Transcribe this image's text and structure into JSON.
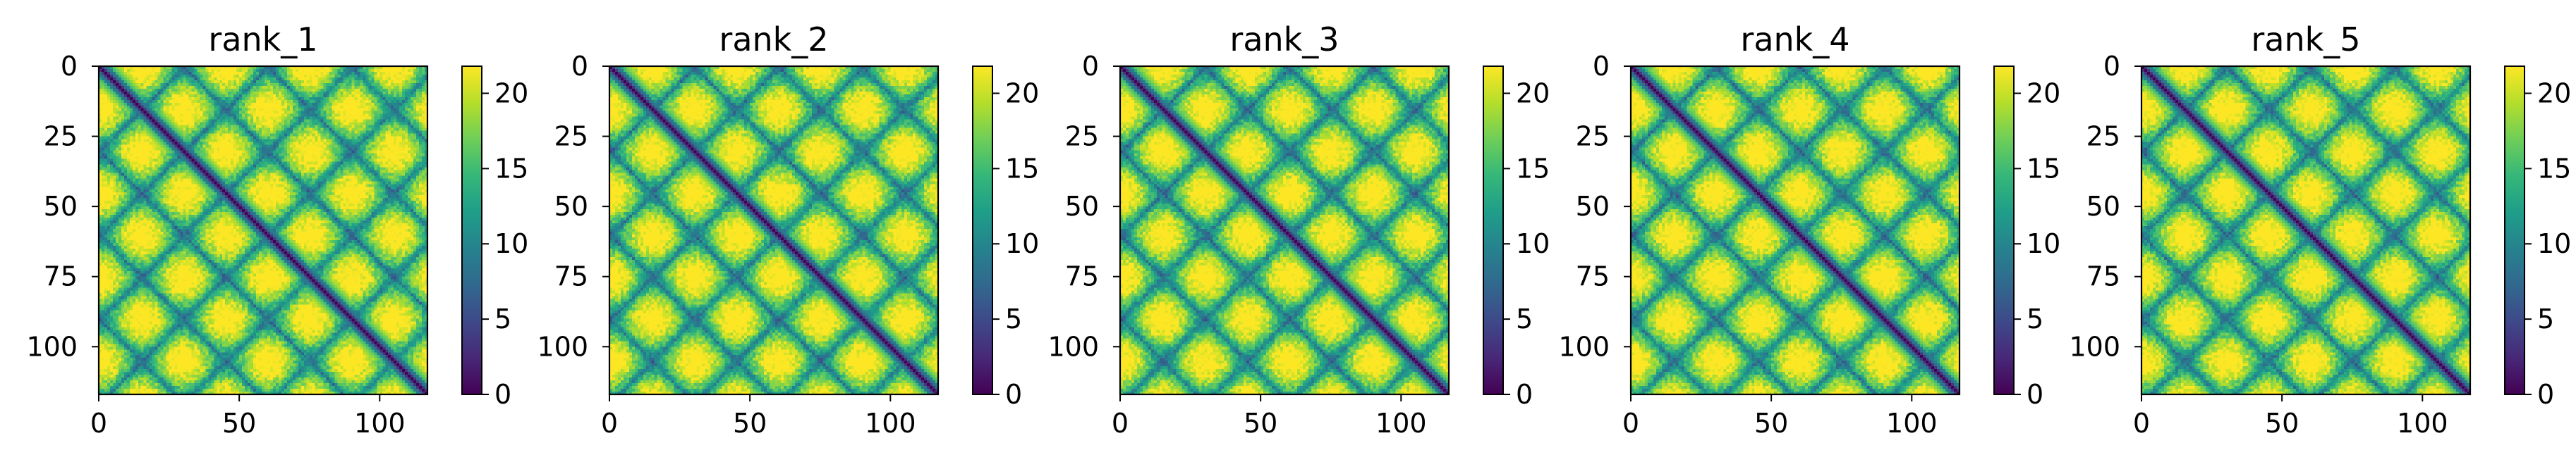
{
  "chart_data": [
    {
      "type": "heatmap",
      "title": "rank_1",
      "xlabel": "",
      "ylabel": "",
      "matrix_size": 117,
      "xlim": [
        0,
        117
      ],
      "ylim": [
        117,
        0
      ],
      "xticks": [
        0,
        50,
        100
      ],
      "yticks": [
        0,
        25,
        50,
        75,
        100
      ],
      "colorbar": {
        "min": 0,
        "max": 21.8,
        "ticks": [
          0,
          5,
          10,
          15,
          20
        ],
        "colormap": "viridis"
      }
    },
    {
      "type": "heatmap",
      "title": "rank_2",
      "xlabel": "",
      "ylabel": "",
      "matrix_size": 117,
      "xlim": [
        0,
        117
      ],
      "ylim": [
        117,
        0
      ],
      "xticks": [
        0,
        50,
        100
      ],
      "yticks": [
        0,
        25,
        50,
        75,
        100
      ],
      "colorbar": {
        "min": 0,
        "max": 21.8,
        "ticks": [
          0,
          5,
          10,
          15,
          20
        ],
        "colormap": "viridis"
      }
    },
    {
      "type": "heatmap",
      "title": "rank_3",
      "xlabel": "",
      "ylabel": "",
      "matrix_size": 117,
      "xlim": [
        0,
        117
      ],
      "ylim": [
        117,
        0
      ],
      "xticks": [
        0,
        50,
        100
      ],
      "yticks": [
        0,
        25,
        50,
        75,
        100
      ],
      "colorbar": {
        "min": 0,
        "max": 21.8,
        "ticks": [
          0,
          5,
          10,
          15,
          20
        ],
        "colormap": "viridis"
      }
    },
    {
      "type": "heatmap",
      "title": "rank_4",
      "xlabel": "",
      "ylabel": "",
      "matrix_size": 117,
      "xlim": [
        0,
        117
      ],
      "ylim": [
        117,
        0
      ],
      "xticks": [
        0,
        50,
        100
      ],
      "yticks": [
        0,
        25,
        50,
        75,
        100
      ],
      "colorbar": {
        "min": 0,
        "max": 21.8,
        "ticks": [
          0,
          5,
          10,
          15,
          20
        ],
        "colormap": "viridis"
      }
    },
    {
      "type": "heatmap",
      "title": "rank_5",
      "xlabel": "",
      "ylabel": "",
      "matrix_size": 117,
      "xlim": [
        0,
        117
      ],
      "ylim": [
        117,
        0
      ],
      "xticks": [
        0,
        50,
        100
      ],
      "yticks": [
        0,
        25,
        50,
        75,
        100
      ],
      "colorbar": {
        "min": 0,
        "max": 21.8,
        "ticks": [
          0,
          5,
          10,
          15,
          20
        ],
        "colormap": "viridis"
      }
    }
  ],
  "colors": {
    "viridis_stops": [
      "#440154",
      "#482878",
      "#3e4989",
      "#31688e",
      "#26828e",
      "#1f9e89",
      "#35b779",
      "#6ece58",
      "#b5de2b",
      "#fde725"
    ]
  }
}
